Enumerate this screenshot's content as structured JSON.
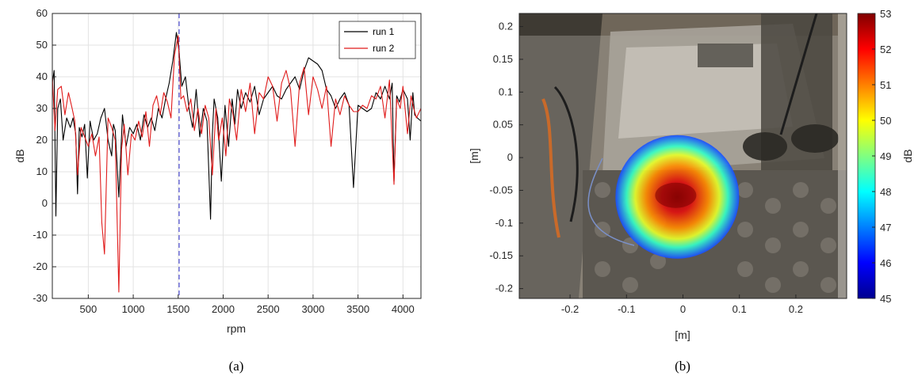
{
  "chart_data": [
    {
      "type": "line",
      "caption": "(a)",
      "xlabel": "rpm",
      "ylabel": "dB",
      "xlim": [
        100,
        4200
      ],
      "ylim": [
        -30,
        60
      ],
      "xticks": [
        500,
        1000,
        1500,
        2000,
        2500,
        3000,
        3500,
        4000
      ],
      "yticks": [
        -30,
        -20,
        -10,
        0,
        10,
        20,
        30,
        40,
        50,
        60
      ],
      "grid": true,
      "legend_position": "top-right",
      "marker_line": {
        "x": 1510,
        "style": "dashed",
        "color": "#6b6bd6"
      },
      "series": [
        {
          "name": "run 1",
          "color": "#000000",
          "x": [
            100,
            120,
            140,
            160,
            190,
            220,
            260,
            300,
            330,
            360,
            380,
            400,
            430,
            460,
            490,
            520,
            560,
            600,
            640,
            680,
            720,
            760,
            780,
            800,
            840,
            880,
            920,
            960,
            1000,
            1040,
            1080,
            1120,
            1160,
            1200,
            1240,
            1280,
            1320,
            1360,
            1400,
            1440,
            1480,
            1510,
            1540,
            1580,
            1620,
            1660,
            1700,
            1740,
            1780,
            1820,
            1860,
            1880,
            1900,
            1940,
            1980,
            2020,
            2060,
            2100,
            2130,
            2160,
            2200,
            2250,
            2300,
            2350,
            2400,
            2450,
            2500,
            2550,
            2600,
            2650,
            2700,
            2750,
            2800,
            2850,
            2900,
            2950,
            3000,
            3050,
            3100,
            3150,
            3200,
            3250,
            3300,
            3350,
            3400,
            3450,
            3500,
            3550,
            3600,
            3650,
            3700,
            3750,
            3800,
            3850,
            3880,
            3900,
            3930,
            3960,
            4000,
            4050,
            4080,
            4110,
            4130,
            4160,
            4200
          ],
          "y": [
            38,
            42,
            -4,
            30,
            33,
            20,
            27,
            24,
            27,
            22,
            3,
            24,
            21,
            25,
            8,
            26,
            20,
            22,
            27,
            30,
            20,
            15,
            25,
            23,
            2,
            28,
            18,
            24,
            22,
            25,
            20,
            28,
            24,
            27,
            23,
            30,
            27,
            33,
            38,
            45,
            54,
            48,
            37,
            40,
            30,
            24,
            36,
            21,
            30,
            26,
            -5,
            22,
            33,
            27,
            7,
            31,
            18,
            33,
            25,
            36,
            30,
            35,
            32,
            37,
            28,
            33,
            35,
            37,
            34,
            33,
            36,
            38,
            40,
            36,
            42,
            46,
            45,
            44,
            42,
            36,
            34,
            30,
            33,
            35,
            31,
            5,
            31,
            30,
            29,
            30,
            35,
            33,
            37,
            33,
            38,
            7,
            34,
            32,
            36,
            33,
            20,
            35,
            28,
            27,
            26
          ]
        },
        {
          "name": "run 2",
          "color": "#e01b1b",
          "x": [
            100,
            130,
            160,
            200,
            240,
            280,
            320,
            350,
            380,
            420,
            460,
            500,
            540,
            580,
            620,
            650,
            680,
            720,
            760,
            800,
            840,
            870,
            900,
            940,
            980,
            1020,
            1060,
            1100,
            1140,
            1180,
            1220,
            1260,
            1300,
            1340,
            1380,
            1420,
            1460,
            1500,
            1530,
            1560,
            1600,
            1640,
            1680,
            1720,
            1760,
            1800,
            1840,
            1880,
            1920,
            1950,
            1990,
            2030,
            2070,
            2110,
            2150,
            2200,
            2250,
            2300,
            2350,
            2400,
            2450,
            2500,
            2550,
            2600,
            2650,
            2700,
            2750,
            2800,
            2850,
            2900,
            2950,
            3000,
            3050,
            3100,
            3150,
            3200,
            3250,
            3300,
            3350,
            3400,
            3450,
            3500,
            3550,
            3600,
            3650,
            3700,
            3750,
            3800,
            3850,
            3900,
            3930,
            3970,
            4000,
            4050,
            4090,
            4120,
            4150,
            4200
          ],
          "y": [
            40,
            23,
            36,
            37,
            28,
            35,
            30,
            26,
            9,
            24,
            21,
            18,
            22,
            15,
            21,
            -6,
            -16,
            27,
            24,
            20,
            -28,
            17,
            25,
            9,
            22,
            20,
            26,
            21,
            29,
            18,
            31,
            34,
            28,
            35,
            32,
            27,
            47,
            53,
            33,
            34,
            29,
            33,
            23,
            30,
            22,
            31,
            27,
            9,
            30,
            20,
            27,
            15,
            33,
            28,
            20,
            36,
            29,
            38,
            22,
            35,
            33,
            40,
            37,
            26,
            38,
            42,
            36,
            18,
            38,
            43,
            28,
            40,
            36,
            30,
            37,
            18,
            33,
            28,
            34,
            31,
            29,
            29,
            31,
            30,
            34,
            33,
            37,
            27,
            39,
            6,
            33,
            30,
            37,
            22,
            34,
            30,
            27,
            30
          ]
        }
      ],
      "legend": [
        "run 1",
        "run 2"
      ]
    },
    {
      "type": "heatmap",
      "caption": "(b)",
      "xlabel": "[m]",
      "ylabel": "[m]",
      "xlim": [
        -0.29,
        0.29
      ],
      "ylim": [
        -0.215,
        0.22
      ],
      "xticks": [
        -0.2,
        -0.1,
        0,
        0.1,
        0.2
      ],
      "xtick_labels": [
        "-0.2",
        "-0.1",
        "0",
        "0.1",
        "0.2"
      ],
      "yticks": [
        0.2,
        0.15,
        0.1,
        0.05,
        0,
        -0.05,
        -0.1,
        -0.15,
        -0.2
      ],
      "ytick_labels": [
        "0.2",
        "0.15",
        "0.1",
        "0.05",
        "0",
        "-0.05",
        "-0.1",
        "-0.15",
        "-0.2"
      ],
      "background": "photograph of test motor on acoustic foam, partially shaded",
      "hotspot": {
        "x": -0.01,
        "y": -0.06,
        "peak_db": 53
      },
      "colorbar": {
        "label": "dB",
        "min": 45,
        "max": 53,
        "ticks": [
          "53",
          "52",
          "51",
          "50",
          "49",
          "48",
          "47",
          "46",
          "45"
        ]
      }
    }
  ]
}
